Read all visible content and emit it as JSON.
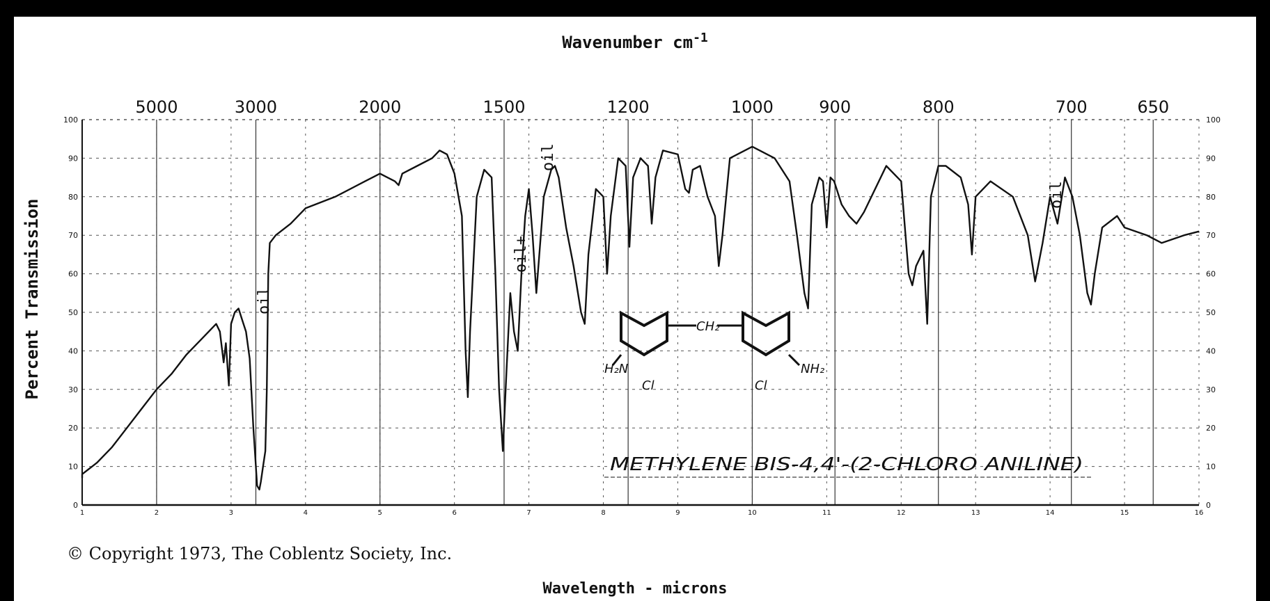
{
  "chart_data": {
    "type": "line",
    "title": "",
    "top_axis_label": "Wavenumber cm",
    "top_axis_exponent": "-1",
    "xlabel": "Wavelength - microns",
    "ylabel": "Percent Transmission",
    "xlim": [
      1,
      16
    ],
    "ylim": [
      0,
      100
    ],
    "x_ticks": [
      1,
      2,
      3,
      4,
      5,
      6,
      7,
      8,
      9,
      10,
      11,
      12,
      13,
      14,
      15,
      16
    ],
    "y_ticks": [
      0,
      10,
      20,
      30,
      40,
      50,
      60,
      70,
      80,
      90,
      100
    ],
    "y_ticks_right": [
      0,
      10,
      20,
      30,
      40,
      50,
      60,
      70,
      80,
      90,
      100
    ],
    "wavenumber_ticks": [
      {
        "label": "5000",
        "micron": 2.0
      },
      {
        "label": "3000",
        "micron": 3.333
      },
      {
        "label": "2000",
        "micron": 5.0
      },
      {
        "label": "1500",
        "micron": 6.667
      },
      {
        "label": "1200",
        "micron": 8.333
      },
      {
        "label": "1000",
        "micron": 10.0
      },
      {
        "label": "900",
        "micron": 11.111
      },
      {
        "label": "800",
        "micron": 12.5
      },
      {
        "label": "700",
        "micron": 14.286
      },
      {
        "label": "650",
        "micron": 15.385
      }
    ],
    "series": [
      {
        "x": [
          1.0,
          1.0,
          1.2,
          1.4,
          1.6,
          1.8,
          2.0,
          2.2,
          2.4,
          2.6,
          2.8,
          2.85,
          2.9,
          2.93,
          2.97,
          3.0,
          3.05,
          3.1,
          3.15,
          3.2,
          3.25,
          3.3,
          3.35,
          3.38,
          3.4,
          3.43,
          3.46,
          3.48,
          3.5,
          3.52,
          3.6,
          3.8,
          4.0,
          4.4,
          4.8,
          5.0,
          5.2,
          5.25,
          5.3,
          5.5,
          5.7,
          5.8,
          5.9,
          6.0,
          6.1,
          6.15,
          6.18,
          6.21,
          6.3,
          6.4,
          6.5,
          6.55,
          6.6,
          6.65,
          6.7,
          6.75,
          6.8,
          6.85,
          6.9,
          6.95,
          7.0,
          7.05,
          7.1,
          7.2,
          7.3,
          7.35,
          7.4,
          7.5,
          7.6,
          7.7,
          7.75,
          7.8,
          7.9,
          8.0,
          8.05,
          8.1,
          8.2,
          8.3,
          8.35,
          8.4,
          8.5,
          8.6,
          8.65,
          8.7,
          8.8,
          9.0,
          9.1,
          9.15,
          9.2,
          9.3,
          9.4,
          9.5,
          9.55,
          9.6,
          9.7,
          10.0,
          10.3,
          10.5,
          10.6,
          10.7,
          10.75,
          10.8,
          10.9,
          10.95,
          11.0,
          11.05,
          11.1,
          11.2,
          11.3,
          11.4,
          11.5,
          11.8,
          12.0,
          12.1,
          12.15,
          12.2,
          12.3,
          12.35,
          12.4,
          12.5,
          12.6,
          12.8,
          12.9,
          12.95,
          13.0,
          13.2,
          13.5,
          13.7,
          13.8,
          13.9,
          14.0,
          14.1,
          14.2,
          14.3,
          14.4,
          14.5,
          14.55,
          14.6,
          14.7,
          14.9,
          15.0,
          15.3,
          15.5,
          15.8,
          16.0
        ],
        "y": [
          7,
          8,
          11,
          15,
          20,
          25,
          30,
          34,
          39,
          43,
          47,
          45,
          37,
          42,
          31,
          47,
          50,
          51,
          48,
          45,
          38,
          20,
          5,
          4,
          6,
          10,
          14,
          30,
          60,
          68,
          70,
          73,
          77,
          80,
          84,
          86,
          84,
          83,
          86,
          88,
          90,
          92,
          91,
          86,
          75,
          40,
          28,
          45,
          80,
          87,
          85,
          60,
          30,
          14,
          35,
          55,
          45,
          40,
          60,
          75,
          82,
          70,
          55,
          80,
          87,
          88,
          85,
          72,
          62,
          50,
          47,
          65,
          82,
          80,
          60,
          75,
          90,
          88,
          67,
          85,
          90,
          88,
          73,
          85,
          92,
          91,
          82,
          81,
          87,
          88,
          80,
          75,
          62,
          70,
          90,
          93,
          90,
          84,
          70,
          55,
          51,
          78,
          85,
          84,
          72,
          85,
          84,
          78,
          75,
          73,
          76,
          88,
          84,
          60,
          57,
          62,
          66,
          47,
          80,
          88,
          88,
          85,
          78,
          65,
          80,
          84,
          80,
          70,
          58,
          68,
          80,
          73,
          85,
          80,
          70,
          55,
          52,
          60,
          72,
          75,
          72,
          70,
          68,
          70,
          71
        ]
      }
    ]
  },
  "annotations": {
    "oil_1": "oil",
    "oil_2": "oil+",
    "oil_3": "oil",
    "oil_4": "oil",
    "structure_ch2": "CH₂",
    "structure_left_amine": "H₂N",
    "structure_right_amine": "NH₂",
    "structure_cl_left": "Cl",
    "structure_cl_right": "Cl",
    "compound_name": "METHYLENE BIS-4,4'-(2-CHLORO ANILINE)"
  },
  "copyright": "© Copyright 1973, The Coblentz Society, Inc."
}
